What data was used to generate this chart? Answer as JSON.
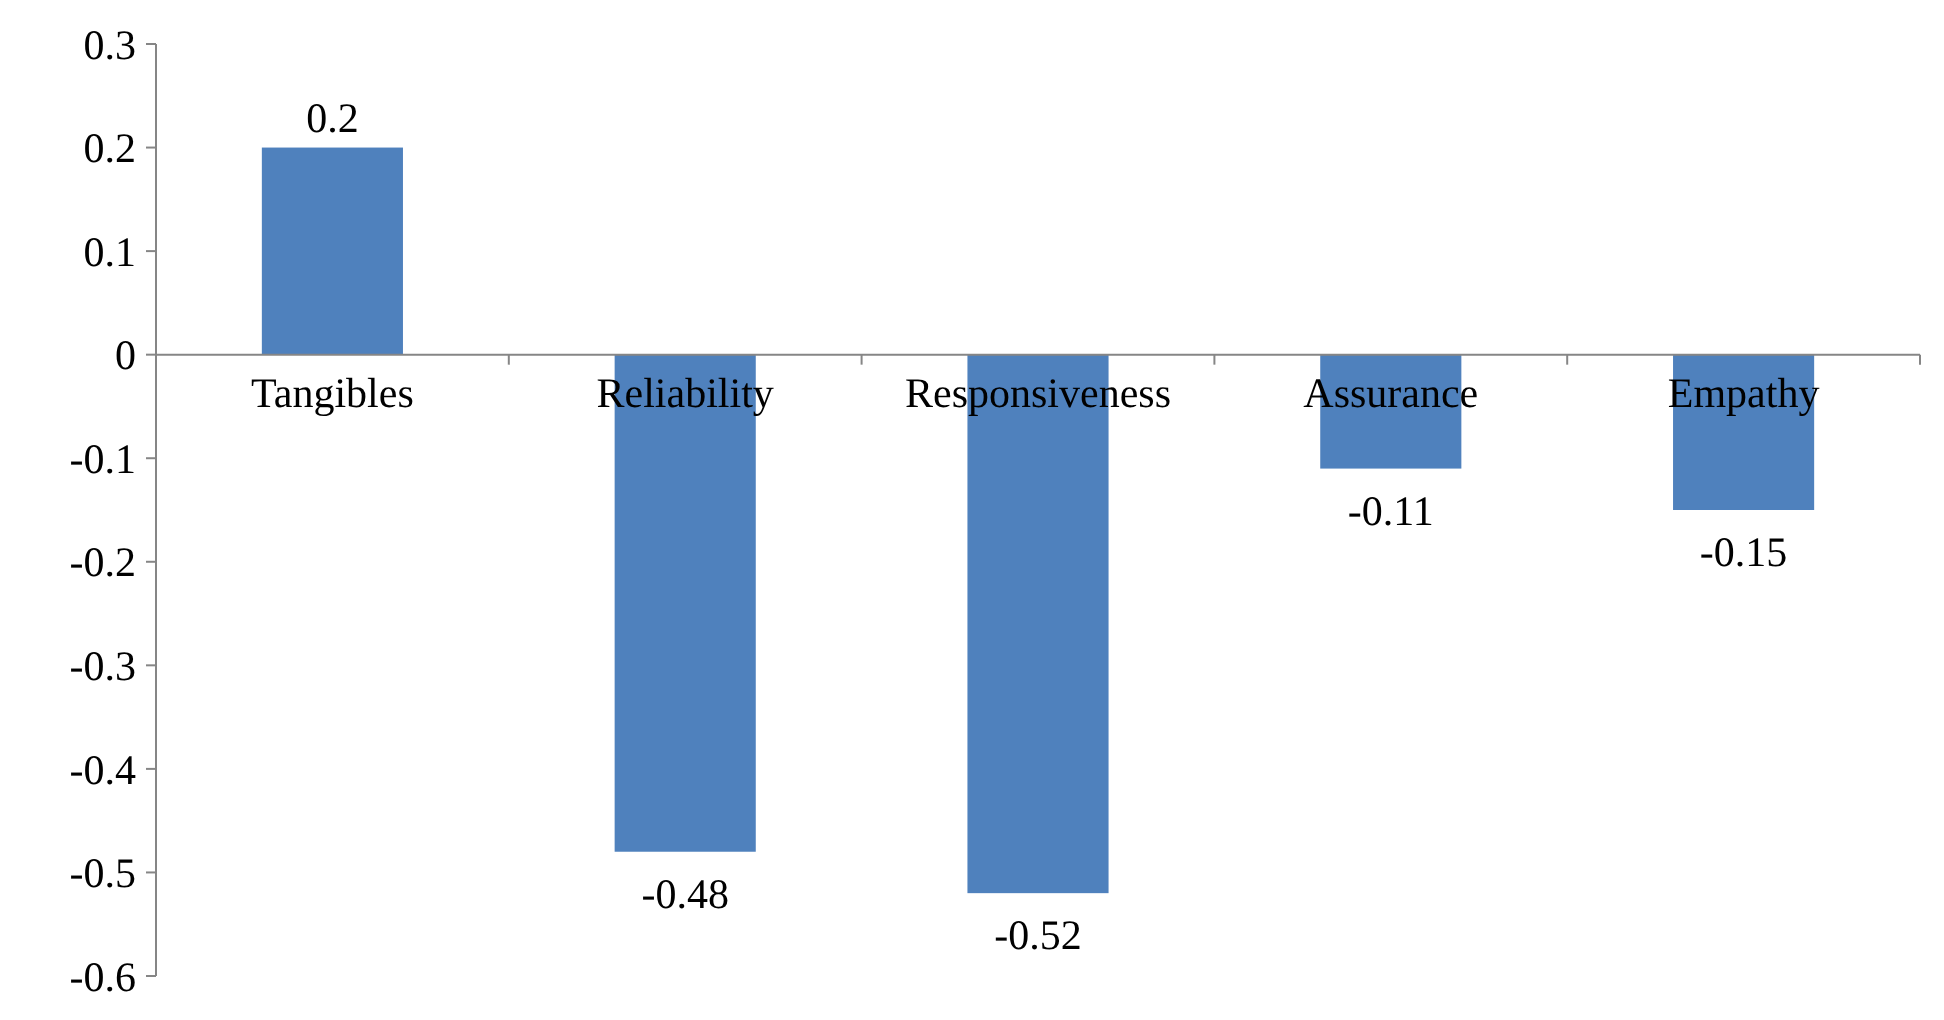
{
  "chart_data": {
    "type": "bar",
    "categories": [
      "Tangibles",
      "Reliability",
      "Responsiveness",
      "Assurance",
      "Empathy"
    ],
    "values": [
      0.2,
      -0.48,
      -0.52,
      -0.11,
      -0.15
    ],
    "color": "#4f81bd",
    "ylim": [
      -0.6,
      0.3
    ],
    "yticks": [
      -0.6,
      -0.5,
      -0.4,
      -0.3,
      -0.2,
      -0.1,
      0,
      0.1,
      0.2,
      0.3
    ],
    "data_labels": true
  }
}
